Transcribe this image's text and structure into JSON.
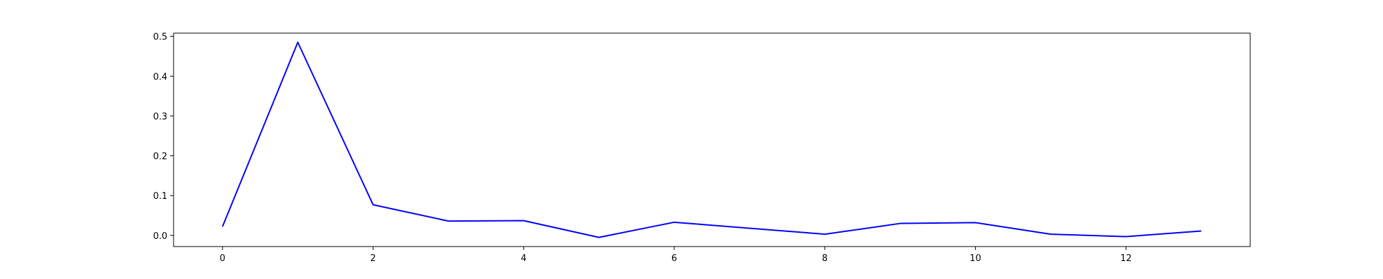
{
  "chart_data": {
    "type": "line",
    "title": "",
    "xlabel": "",
    "ylabel": "",
    "x": [
      0,
      1,
      2,
      3,
      4,
      5,
      6,
      7,
      8,
      9,
      10,
      11,
      12,
      13
    ],
    "series": [
      {
        "color": "#0000ff",
        "values": [
          0.022,
          0.485,
          0.077,
          0.036,
          0.037,
          -0.005,
          0.033,
          0.018,
          0.003,
          0.03,
          0.032,
          0.003,
          -0.003,
          0.011
        ]
      }
    ],
    "xlim": [
      -0.65,
      13.65
    ],
    "ylim": [
      -0.028,
      0.508
    ],
    "xticks": [
      0,
      2,
      4,
      6,
      8,
      10,
      12
    ],
    "xtick_labels": [
      "0",
      "2",
      "4",
      "6",
      "8",
      "10",
      "12"
    ],
    "yticks": [
      0.0,
      0.1,
      0.2,
      0.3,
      0.4,
      0.5
    ],
    "ytick_labels": [
      "0.0",
      "0.1",
      "0.2",
      "0.3",
      "0.4",
      "0.5"
    ],
    "grid": false,
    "legend": "none"
  }
}
